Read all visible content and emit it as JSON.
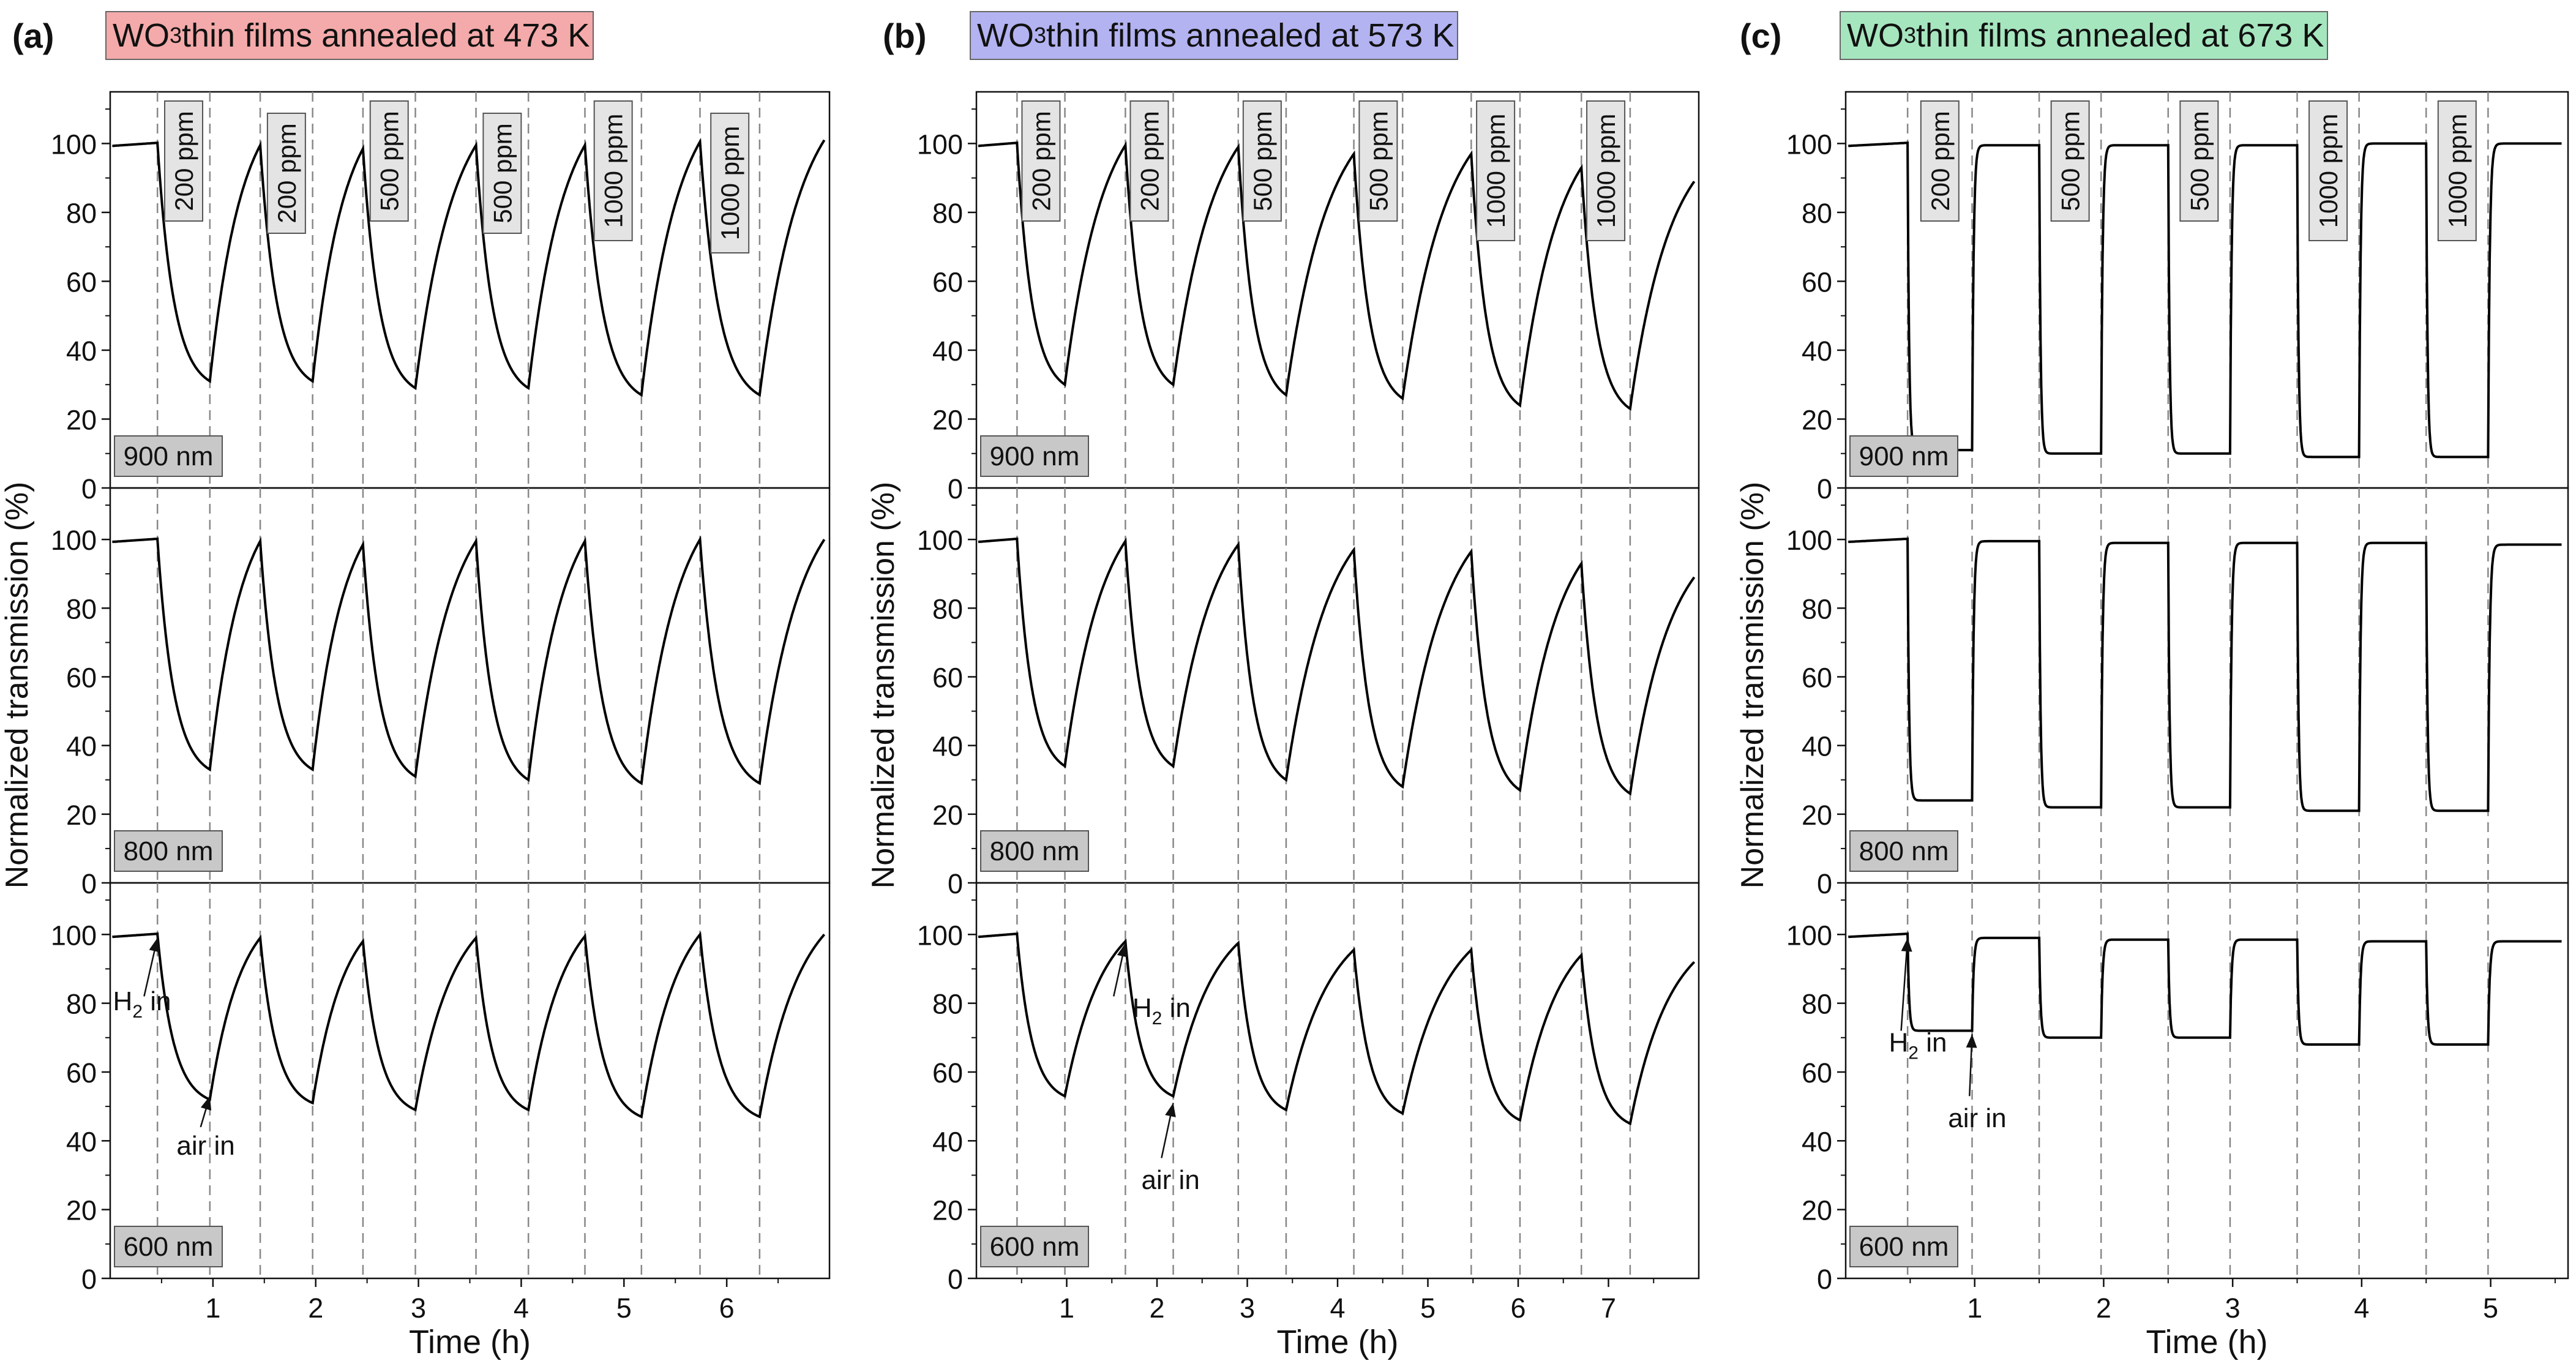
{
  "chart_data": [
    {
      "type": "line",
      "panel_label": "(a)",
      "title_prefix": "WO",
      "title_subscript": "3",
      "title_suffix": " thin films annealed at 473 K",
      "title_color": "#f4aaaa",
      "xlabel": "Time (h)",
      "ylabel": "Normalized transmission (%)",
      "xlim": [
        0,
        7
      ],
      "ylim": [
        0,
        115
      ],
      "xticks": [
        1,
        2,
        3,
        4,
        5,
        6
      ],
      "yticks": [
        0,
        20,
        40,
        60,
        80,
        100
      ],
      "gas_switch_times": [
        0.46,
        0.97,
        1.46,
        1.97,
        2.46,
        2.97,
        3.56,
        4.07,
        4.62,
        5.17,
        5.74,
        6.32
      ],
      "concentration_labels": [
        "200 ppm",
        "200 ppm",
        "500 ppm",
        "500 ppm",
        "1000 ppm",
        "1000 ppm"
      ],
      "subplots": [
        {
          "thickness_label": "900 nm",
          "recover_end": [
            99.5,
            98.5,
            99.5,
            99.5,
            100.5,
            101
          ],
          "min_values": [
            31,
            31,
            29,
            29,
            27,
            27
          ]
        },
        {
          "thickness_label": "800 nm",
          "recover_end": [
            99.5,
            98.5,
            99.5,
            99.5,
            100,
            100
          ],
          "min_values": [
            33,
            33,
            31,
            30,
            29,
            29
          ]
        },
        {
          "thickness_label": "600 nm",
          "recover_end": [
            99,
            98,
            99,
            99.5,
            100,
            100
          ],
          "min_values": [
            52,
            51,
            49,
            49,
            47,
            47
          ]
        }
      ],
      "annotations": [
        {
          "prefix": "H",
          "sub": "2",
          "suffix": " in"
        },
        {
          "prefix": "air in",
          "sub": "",
          "suffix": ""
        }
      ]
    },
    {
      "type": "line",
      "panel_label": "(b)",
      "title_prefix": "WO",
      "title_subscript": "3",
      "title_suffix": " thin films annealed at 573 K",
      "title_color": "#b3b3f2",
      "xlabel": "Time (h)",
      "ylabel": "Normalized transmission (%)",
      "xlim": [
        0,
        8
      ],
      "ylim": [
        0,
        115
      ],
      "xticks": [
        1,
        2,
        3,
        4,
        5,
        6,
        7
      ],
      "yticks": [
        0,
        20,
        40,
        60,
        80,
        100
      ],
      "gas_switch_times": [
        0.45,
        0.98,
        1.65,
        2.18,
        2.9,
        3.43,
        4.18,
        4.72,
        5.48,
        6.02,
        6.7,
        7.24
      ],
      "concentration_labels": [
        "200 ppm",
        "200 ppm",
        "500 ppm",
        "500 ppm",
        "1000 ppm",
        "1000 ppm"
      ],
      "subplots": [
        {
          "thickness_label": "900 nm",
          "recover_end": [
            99.5,
            99,
            97,
            97,
            93,
            89
          ],
          "min_values": [
            30,
            30,
            27,
            26,
            24,
            23
          ]
        },
        {
          "thickness_label": "800 nm",
          "recover_end": [
            99.5,
            98.5,
            97,
            96.5,
            93,
            89
          ],
          "min_values": [
            34,
            34,
            30,
            28,
            27,
            26
          ]
        },
        {
          "thickness_label": "600 nm",
          "recover_end": [
            98,
            97.5,
            95.5,
            95.5,
            94,
            92
          ],
          "min_values": [
            53,
            53,
            49,
            48,
            46,
            45
          ]
        }
      ],
      "annotations": [
        {
          "prefix": "H",
          "sub": "2",
          "suffix": " in"
        },
        {
          "prefix": "air in",
          "sub": "",
          "suffix": ""
        }
      ]
    },
    {
      "type": "line",
      "panel_label": "(c)",
      "title_prefix": "WO",
      "title_subscript": "3",
      "title_suffix": " thin films annealed at 673 K",
      "title_color": "#a6e6bf",
      "xlabel": "Time (h)",
      "ylabel": "Normalized transmission (%)",
      "xlim": [
        0,
        5.6
      ],
      "ylim": [
        0,
        115
      ],
      "xticks": [
        1,
        2,
        3,
        4,
        5
      ],
      "yticks": [
        0,
        20,
        40,
        60,
        80,
        100
      ],
      "gas_switch_times": [
        0.48,
        0.98,
        1.5,
        1.98,
        2.5,
        2.98,
        3.5,
        3.98,
        4.5,
        4.98
      ],
      "concentration_labels": [
        "200 ppm",
        "500 ppm",
        "500 ppm",
        "1000 ppm",
        "1000 ppm"
      ],
      "subplots": [
        {
          "thickness_label": "900 nm",
          "recover_end": [
            99.5,
            99.5,
            99.5,
            100,
            100
          ],
          "min_values": [
            11,
            10,
            10,
            9,
            9
          ]
        },
        {
          "thickness_label": "800 nm",
          "recover_end": [
            99.5,
            99,
            99,
            99,
            98.5
          ],
          "min_values": [
            24,
            22,
            22,
            21,
            21
          ]
        },
        {
          "thickness_label": "600 nm",
          "recover_end": [
            99,
            98.5,
            98.5,
            98,
            98
          ],
          "min_values": [
            72,
            70,
            70,
            68,
            68
          ]
        }
      ],
      "annotations": [
        {
          "prefix": "H",
          "sub": "2",
          "suffix": " in"
        },
        {
          "prefix": "air in",
          "sub": "",
          "suffix": ""
        }
      ]
    }
  ]
}
